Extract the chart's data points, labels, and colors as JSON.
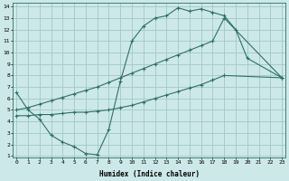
{
  "bg_color": "#cde8e8",
  "grid_color": "#a0c8c8",
  "line_color": "#2e7068",
  "xlim": [
    0,
    23
  ],
  "ylim": [
    1,
    14
  ],
  "xticks": [
    0,
    1,
    2,
    3,
    4,
    5,
    6,
    7,
    8,
    9,
    10,
    11,
    12,
    13,
    14,
    15,
    16,
    17,
    18,
    19,
    20,
    21,
    22,
    23
  ],
  "yticks": [
    1,
    2,
    3,
    4,
    5,
    6,
    7,
    8,
    9,
    10,
    11,
    12,
    13,
    14
  ],
  "xlabel": "Humidex (Indice chaleur)",
  "curve1_x": [
    0,
    1,
    2,
    3,
    4,
    5,
    6,
    7,
    8,
    9,
    10,
    11,
    12,
    13,
    14,
    15,
    16,
    17,
    18,
    19,
    20,
    23
  ],
  "curve1_y": [
    6.5,
    5.0,
    4.2,
    2.8,
    2.2,
    1.8,
    1.2,
    1.1,
    3.3,
    7.5,
    11.0,
    12.3,
    13.0,
    13.2,
    13.9,
    13.6,
    13.8,
    13.5,
    13.2,
    12.0,
    9.5,
    7.8
  ],
  "curve2_x": [
    0,
    1,
    2,
    3,
    4,
    5,
    6,
    7,
    8,
    9,
    10,
    11,
    12,
    13,
    14,
    15,
    16,
    17,
    18,
    23
  ],
  "curve2_y": [
    5.0,
    5.2,
    5.5,
    5.8,
    6.1,
    6.4,
    6.7,
    7.0,
    7.4,
    7.8,
    8.2,
    8.6,
    9.0,
    9.4,
    9.8,
    10.2,
    10.6,
    11.0,
    13.0,
    7.8
  ],
  "curve3_x": [
    0,
    1,
    2,
    3,
    4,
    5,
    6,
    7,
    8,
    9,
    10,
    11,
    12,
    13,
    14,
    15,
    16,
    17,
    18,
    23
  ],
  "curve3_y": [
    4.5,
    4.5,
    4.6,
    4.6,
    4.7,
    4.8,
    4.8,
    4.9,
    5.0,
    5.2,
    5.4,
    5.7,
    6.0,
    6.3,
    6.6,
    6.9,
    7.2,
    7.6,
    8.0,
    7.8
  ]
}
